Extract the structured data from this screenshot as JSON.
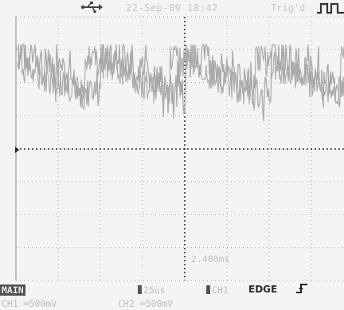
{
  "status": {
    "date_time": "22-Sep-09 18:42",
    "trigger_label": "Trig'd"
  },
  "bottom": {
    "mode": "MAIN",
    "timebase": "25us",
    "source": "CH1",
    "trigger_type": "EDGE",
    "ch1": "CH1  ═500mV",
    "ch2": "CH2  ═500mV"
  },
  "display": {
    "position_readout": "2.480ms",
    "trace_color": "#a9a9a9",
    "grid_color": "#9a9a9a",
    "background": "#f4f4f4"
  }
}
